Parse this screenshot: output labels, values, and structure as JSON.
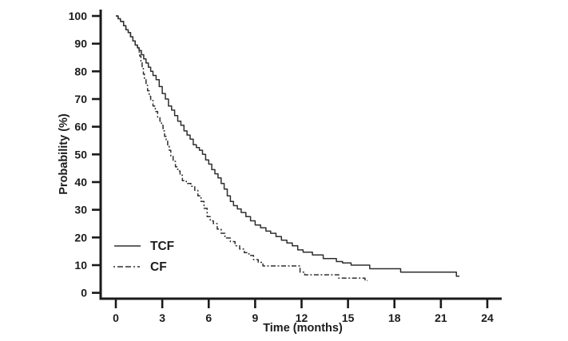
{
  "chart_data": {
    "type": "line",
    "subtype": "kaplan-meier-step",
    "title": "",
    "xlabel": "Time (months)",
    "ylabel": "Probability (%)",
    "xlim": [
      0,
      24
    ],
    "ylim": [
      0,
      100
    ],
    "x_ticks": [
      0,
      3,
      6,
      9,
      12,
      15,
      18,
      21,
      24
    ],
    "y_ticks": [
      0,
      10,
      20,
      30,
      40,
      50,
      60,
      70,
      80,
      90,
      100
    ],
    "grid": false,
    "legend_position": "lower-left",
    "colors": {
      "axis": "#1a1a1a",
      "curve": "#2e2e2e",
      "text": "#1c1c1c"
    },
    "series": [
      {
        "name": "TCF",
        "style": "solid",
        "median_months": 5.6,
        "points": [
          [
            0,
            100
          ],
          [
            0.15,
            99
          ],
          [
            0.3,
            98
          ],
          [
            0.5,
            96.5
          ],
          [
            0.65,
            95
          ],
          [
            0.8,
            94
          ],
          [
            0.95,
            92.5
          ],
          [
            1.1,
            91
          ],
          [
            1.25,
            89.5
          ],
          [
            1.4,
            88.5
          ],
          [
            1.5,
            87.5
          ],
          [
            1.65,
            86
          ],
          [
            1.8,
            84.5
          ],
          [
            1.95,
            83
          ],
          [
            2.1,
            81.5
          ],
          [
            2.25,
            80
          ],
          [
            2.4,
            78.5
          ],
          [
            2.6,
            77
          ],
          [
            2.8,
            74.5
          ],
          [
            3.0,
            72
          ],
          [
            3.2,
            70
          ],
          [
            3.4,
            67.5
          ],
          [
            3.6,
            66
          ],
          [
            3.8,
            64
          ],
          [
            4.0,
            62
          ],
          [
            4.2,
            60.5
          ],
          [
            4.4,
            58.5
          ],
          [
            4.6,
            57
          ],
          [
            4.8,
            55.5
          ],
          [
            5.0,
            53.5
          ],
          [
            5.2,
            52.5
          ],
          [
            5.4,
            51.5
          ],
          [
            5.6,
            50
          ],
          [
            5.8,
            48
          ],
          [
            6.0,
            46.5
          ],
          [
            6.2,
            44.5
          ],
          [
            6.4,
            43
          ],
          [
            6.6,
            41.5
          ],
          [
            6.8,
            39.5
          ],
          [
            7.0,
            37.5
          ],
          [
            7.2,
            35
          ],
          [
            7.4,
            33
          ],
          [
            7.6,
            31.5
          ],
          [
            7.85,
            30.3
          ],
          [
            8.1,
            29
          ],
          [
            8.4,
            27.5
          ],
          [
            8.7,
            26
          ],
          [
            9.0,
            24.5
          ],
          [
            9.35,
            23.5
          ],
          [
            9.7,
            22.3
          ],
          [
            10.0,
            21.5
          ],
          [
            10.35,
            20.3
          ],
          [
            10.7,
            19
          ],
          [
            11.05,
            18
          ],
          [
            11.4,
            17
          ],
          [
            11.75,
            15.5
          ],
          [
            12.1,
            14.7
          ],
          [
            12.7,
            13.7
          ],
          [
            13.4,
            12.4
          ],
          [
            14.25,
            11.3
          ],
          [
            14.65,
            10.8
          ],
          [
            15.2,
            10
          ],
          [
            16.4,
            8.7
          ],
          [
            18.4,
            7.5
          ],
          [
            22.0,
            6.0
          ],
          [
            22.2,
            6.0
          ]
        ]
      },
      {
        "name": "CF",
        "style": "dash-dot",
        "median_months": 3.6,
        "points": [
          [
            0,
            100
          ],
          [
            0.15,
            99
          ],
          [
            0.3,
            98
          ],
          [
            0.5,
            96.5
          ],
          [
            0.65,
            95
          ],
          [
            0.8,
            94
          ],
          [
            0.95,
            92.5
          ],
          [
            1.1,
            91
          ],
          [
            1.25,
            89.5
          ],
          [
            1.4,
            88.5
          ],
          [
            1.5,
            87
          ],
          [
            1.55,
            85.5
          ],
          [
            1.62,
            83.5
          ],
          [
            1.7,
            81
          ],
          [
            1.78,
            79
          ],
          [
            1.85,
            77
          ],
          [
            1.95,
            75
          ],
          [
            2.05,
            73
          ],
          [
            2.15,
            71
          ],
          [
            2.25,
            69.5
          ],
          [
            2.4,
            67.5
          ],
          [
            2.55,
            65.5
          ],
          [
            2.7,
            63.5
          ],
          [
            2.85,
            62
          ],
          [
            2.95,
            60.5
          ],
          [
            3.05,
            58.5
          ],
          [
            3.15,
            56.5
          ],
          [
            3.25,
            55
          ],
          [
            3.35,
            53
          ],
          [
            3.45,
            51.5
          ],
          [
            3.55,
            49.5
          ],
          [
            3.7,
            47.5
          ],
          [
            3.85,
            45.5
          ],
          [
            4.0,
            44
          ],
          [
            4.15,
            42.5
          ],
          [
            4.3,
            40.5
          ],
          [
            4.55,
            39.5
          ],
          [
            4.85,
            38.5
          ],
          [
            5.1,
            37
          ],
          [
            5.3,
            35
          ],
          [
            5.5,
            33
          ],
          [
            5.7,
            30.5
          ],
          [
            5.9,
            27.5
          ],
          [
            6.1,
            26
          ],
          [
            6.3,
            25
          ],
          [
            6.55,
            23
          ],
          [
            6.8,
            21.5
          ],
          [
            7.05,
            19.8
          ],
          [
            7.4,
            18.5
          ],
          [
            7.7,
            17
          ],
          [
            8.0,
            15.8
          ],
          [
            8.3,
            14.5
          ],
          [
            8.6,
            13.5
          ],
          [
            8.9,
            12
          ],
          [
            9.2,
            11
          ],
          [
            9.5,
            9.7
          ],
          [
            11.9,
            7.5
          ],
          [
            12.2,
            6.5
          ],
          [
            14.4,
            5.3
          ],
          [
            16.1,
            4.4
          ],
          [
            16.25,
            4.4
          ]
        ]
      }
    ]
  }
}
